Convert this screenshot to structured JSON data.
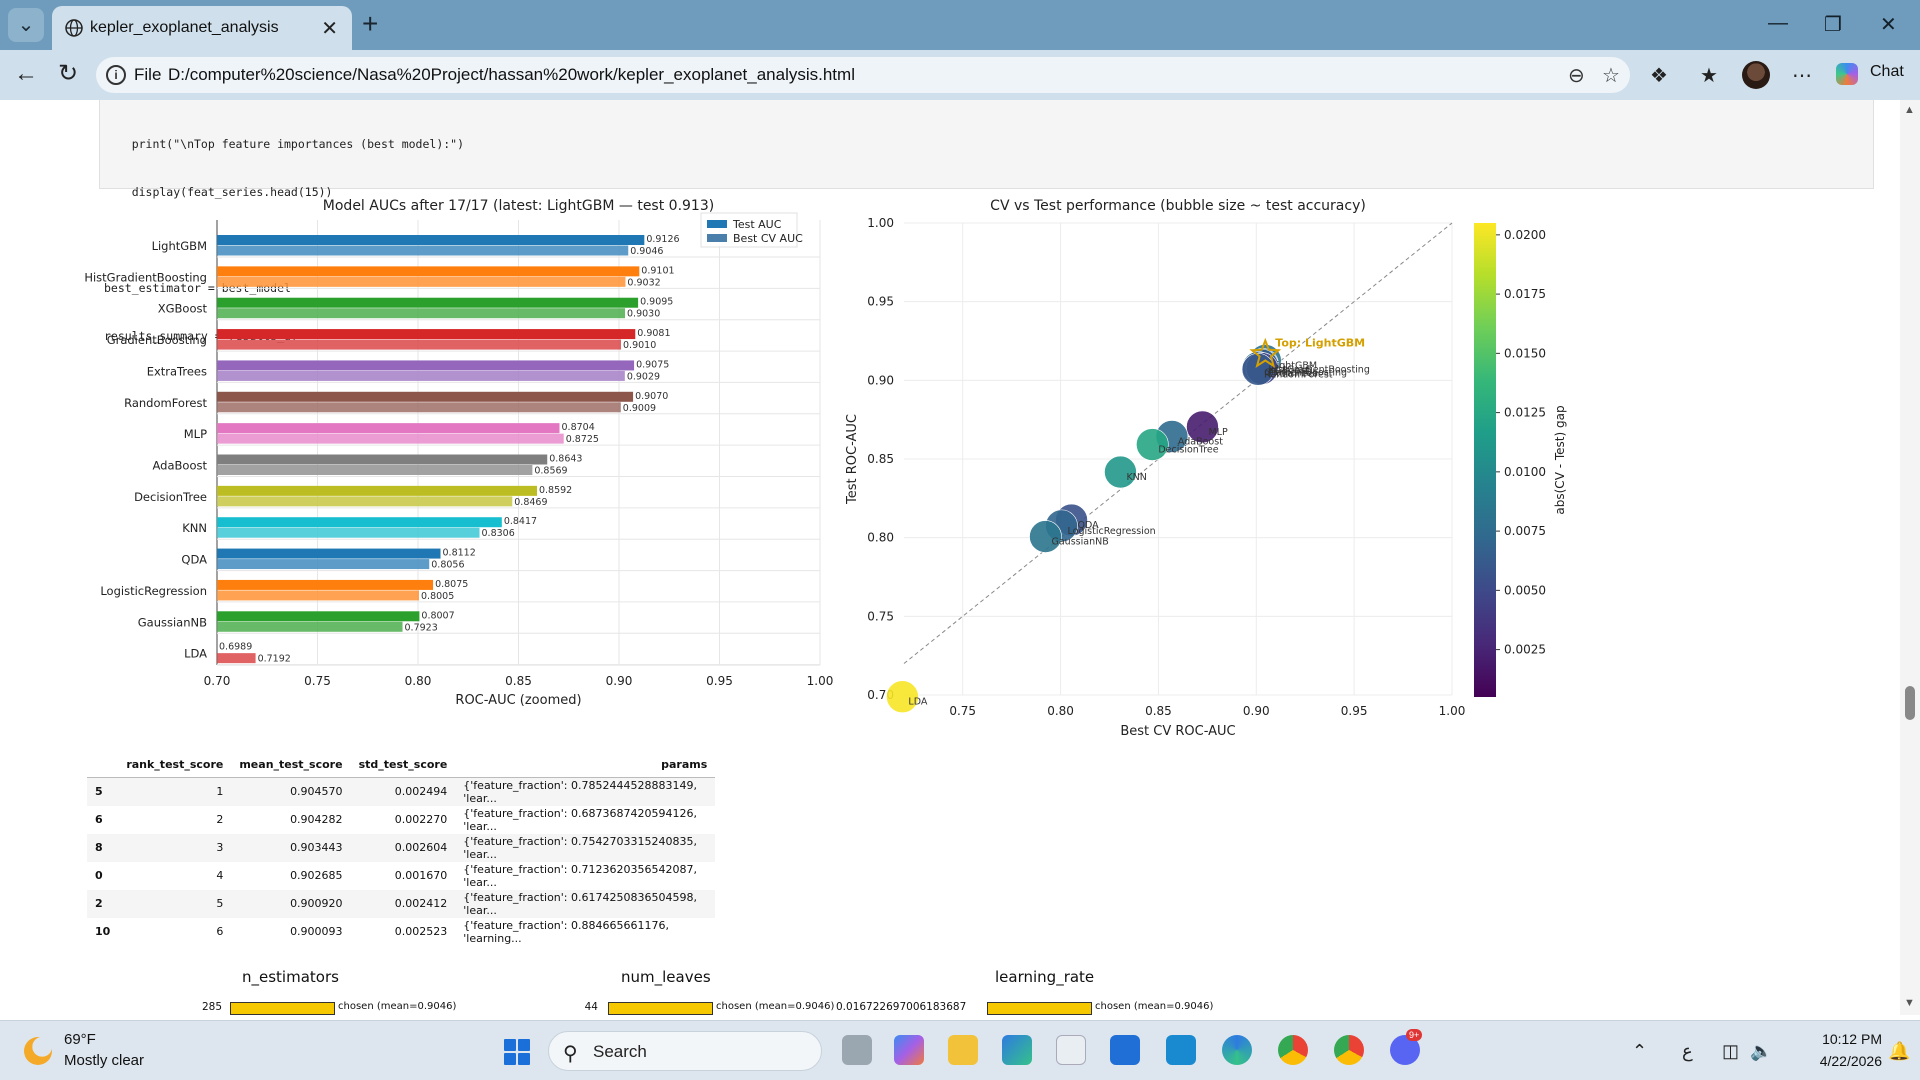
{
  "browser": {
    "tab_title": "kepler_exoplanet_analysis",
    "protocol_label": "File",
    "url": "D:/computer%20science/Nasa%20Project/hassan%20work/kepler_exoplanet_analysis.html",
    "chat_label": "Chat"
  },
  "code_lines": [
    "    print(\"\\nTop feature importances (best model):\")",
    "    display(feat_series.head(15))",
    "",
    "best_estimator = best_model",
    "results_summary = results_df"
  ],
  "chart_data": [
    {
      "type": "bar",
      "title": "Model AUCs after 17/17 (latest: LightGBM — test 0.913)",
      "xlabel": "ROC-AUC (zoomed)",
      "ylabel": "",
      "xlim": [
        0.7,
        1.0
      ],
      "xticks": [
        "0.70",
        "0.75",
        "0.80",
        "0.85",
        "0.90",
        "0.95",
        "1.00"
      ],
      "grid": true,
      "legend_position": "top-right",
      "categories": [
        "LightGBM",
        "HistGradientBoosting",
        "XGBoost",
        "GradientBoosting",
        "ExtraTrees",
        "RandomForest",
        "MLP",
        "AdaBoost",
        "DecisionTree",
        "KNN",
        "QDA",
        "LogisticRegression",
        "GaussianNB",
        "LDA"
      ],
      "series": [
        {
          "name": "Test AUC",
          "values": [
            0.9126,
            0.9101,
            0.9095,
            0.9081,
            0.9075,
            0.907,
            0.8704,
            0.8643,
            0.8592,
            0.8417,
            0.8112,
            0.8075,
            0.8007,
            0.6989
          ]
        },
        {
          "name": "Best CV AUC",
          "values": [
            0.9046,
            0.9032,
            0.903,
            0.901,
            0.9029,
            0.9009,
            0.8725,
            0.8569,
            0.8469,
            0.8306,
            0.8056,
            0.8005,
            0.7923,
            0.7192
          ]
        }
      ],
      "value_labels": {
        "test": [
          "0.9126",
          "0.9101",
          "0.9095",
          "0.9081",
          "0.9075",
          "0.9070",
          "0.8704",
          "0.8643",
          "0.8592",
          "0.8417",
          "0.8112",
          "0.8075",
          "0.8007",
          "0.6989"
        ],
        "cv": [
          "0.9046",
          "0.9032",
          "0.9030",
          "0.9010",
          "0.9029",
          "0.9009",
          "0.8725",
          "0.8569",
          "0.8469",
          "0.8306",
          "0.8056",
          "0.8005",
          "0.7923",
          "0.7192"
        ]
      },
      "colors": [
        "#1f77b4",
        "#ff7f0e",
        "#2ca02c",
        "#d62728",
        "#9467bd",
        "#8c564b",
        "#e377c2",
        "#7f7f7f",
        "#bcbd22",
        "#17becf",
        "#1f77b4",
        "#ff7f0e",
        "#2ca02c",
        "#d62728"
      ]
    },
    {
      "type": "scatter",
      "title": "CV vs Test performance (bubble size ~ test accuracy)",
      "xlabel": "Best CV ROC-AUC",
      "ylabel": "Test ROC-AUC",
      "xlim": [
        0.72,
        1.0
      ],
      "ylim": [
        0.7,
        1.0
      ],
      "xticks": [
        "0.75",
        "0.80",
        "0.85",
        "0.90",
        "0.95",
        "1.00"
      ],
      "yticks": [
        "0.70",
        "0.75",
        "0.80",
        "0.85",
        "0.90",
        "0.95",
        "1.00"
      ],
      "grid": true,
      "diagonal": true,
      "colorbar_label": "abs(CV - Test) gap",
      "colorbar_ticks": [
        "0.0200",
        "0.0175",
        "0.0150",
        "0.0125",
        "0.0100",
        "0.0075",
        "0.0050",
        "0.0025"
      ],
      "colorbar_range": [
        0.0005,
        0.0205
      ],
      "annotation": "Top: LightGBM",
      "annotation_color": "#d4a000",
      "points": [
        {
          "name": "LightGBM",
          "x": 0.9046,
          "y": 0.9126,
          "gap": 0.008
        },
        {
          "name": "HistGradientBoosting",
          "x": 0.9032,
          "y": 0.9101,
          "gap": 0.0069
        },
        {
          "name": "XGBoost",
          "x": 0.903,
          "y": 0.9095,
          "gap": 0.0065
        },
        {
          "name": "GradientBoosting",
          "x": 0.901,
          "y": 0.9081,
          "gap": 0.0071
        },
        {
          "name": "ExtraTrees",
          "x": 0.9029,
          "y": 0.9075,
          "gap": 0.0046
        },
        {
          "name": "RandomForest",
          "x": 0.9009,
          "y": 0.907,
          "gap": 0.0061
        },
        {
          "name": "MLP",
          "x": 0.8725,
          "y": 0.8704,
          "gap": 0.0021
        },
        {
          "name": "AdaBoost",
          "x": 0.8569,
          "y": 0.8643,
          "gap": 0.0074
        },
        {
          "name": "DecisionTree",
          "x": 0.8469,
          "y": 0.8592,
          "gap": 0.0123
        },
        {
          "name": "KNN",
          "x": 0.8306,
          "y": 0.8417,
          "gap": 0.0111
        },
        {
          "name": "QDA",
          "x": 0.8056,
          "y": 0.8112,
          "gap": 0.0056
        },
        {
          "name": "LogisticRegression",
          "x": 0.8005,
          "y": 0.8075,
          "gap": 0.007
        },
        {
          "name": "GaussianNB",
          "x": 0.7923,
          "y": 0.8007,
          "gap": 0.0084
        },
        {
          "name": "LDA",
          "x": 0.7192,
          "y": 0.6989,
          "gap": 0.0203
        }
      ]
    }
  ],
  "results_table": {
    "headers": [
      "",
      "rank_test_score",
      "mean_test_score",
      "std_test_score",
      "params"
    ],
    "rows": [
      [
        "5",
        "1",
        "0.904570",
        "0.002494",
        "{'feature_fraction': 0.7852444528883149, 'lear..."
      ],
      [
        "6",
        "2",
        "0.904282",
        "0.002270",
        "{'feature_fraction': 0.6873687420594126, 'lear..."
      ],
      [
        "8",
        "3",
        "0.903443",
        "0.002604",
        "{'feature_fraction': 0.7542703315240835, 'lear..."
      ],
      [
        "0",
        "4",
        "0.902685",
        "0.001670",
        "{'feature_fraction': 0.7123620356542087, 'lear..."
      ],
      [
        "2",
        "5",
        "0.900920",
        "0.002412",
        "{'feature_fraction': 0.6174250836504598, 'lear..."
      ],
      [
        "10",
        "6",
        "0.900093",
        "0.002523",
        "{'feature_fraction': 0.884665661176, 'learning..."
      ]
    ]
  },
  "hyperparams": [
    {
      "name": "n_estimators",
      "value": "285",
      "bar_label": "chosen (mean=0.9046)"
    },
    {
      "name": "num_leaves",
      "value": "44",
      "bar_label": "chosen (mean=0.9046)"
    },
    {
      "name": "learning_rate",
      "value": "0.016722697006183687",
      "bar_label": "chosen (mean=0.9046)"
    }
  ],
  "taskbar": {
    "temperature": "69°F",
    "condition": "Mostly clear",
    "search_label": "Search",
    "time": "10:12 PM",
    "date": "4/22/2026",
    "lang": "ع",
    "badge": "9+"
  }
}
